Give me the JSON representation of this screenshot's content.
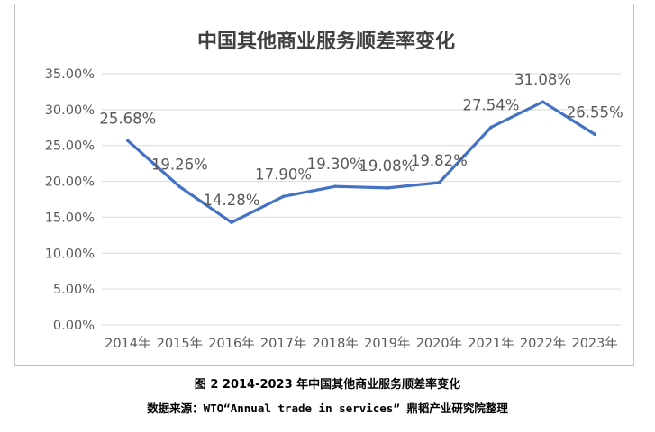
{
  "figure_caption": "图 2 2014-2023 年中国其他商业服务顺差率变化",
  "source_note": "数据来源：WTO“Annual trade in services” 鼎韬产业研究院整理",
  "chart_data": {
    "type": "line",
    "title": "中国其他商业服务顺差率变化",
    "xlabel": "",
    "ylabel": "",
    "categories": [
      "2014年",
      "2015年",
      "2016年",
      "2017年",
      "2018年",
      "2019年",
      "2020年",
      "2021年",
      "2022年",
      "2023年"
    ],
    "series": [
      {
        "values": [
          25.68,
          19.26,
          14.28,
          17.9,
          19.3,
          19.08,
          19.82,
          27.54,
          31.08,
          26.55
        ],
        "labels": [
          "25.68%",
          "19.26%",
          "14.28%",
          "17.90%",
          "19.30%",
          "19.08%",
          "19.82%",
          "27.54%",
          "31.08%",
          "26.55%"
        ]
      }
    ],
    "ylim": [
      0,
      35
    ],
    "yticks": [
      0,
      5,
      10,
      15,
      20,
      25,
      30,
      35
    ],
    "ytick_labels": [
      "0.00%",
      "5.00%",
      "10.00%",
      "15.00%",
      "20.00%",
      "25.00%",
      "30.00%",
      "35.00%"
    ],
    "grid": true,
    "legend": "none",
    "colors": {
      "line": "#4472c4",
      "grid": "#d9d9d9",
      "text": "#595959",
      "title": "#404040"
    }
  }
}
